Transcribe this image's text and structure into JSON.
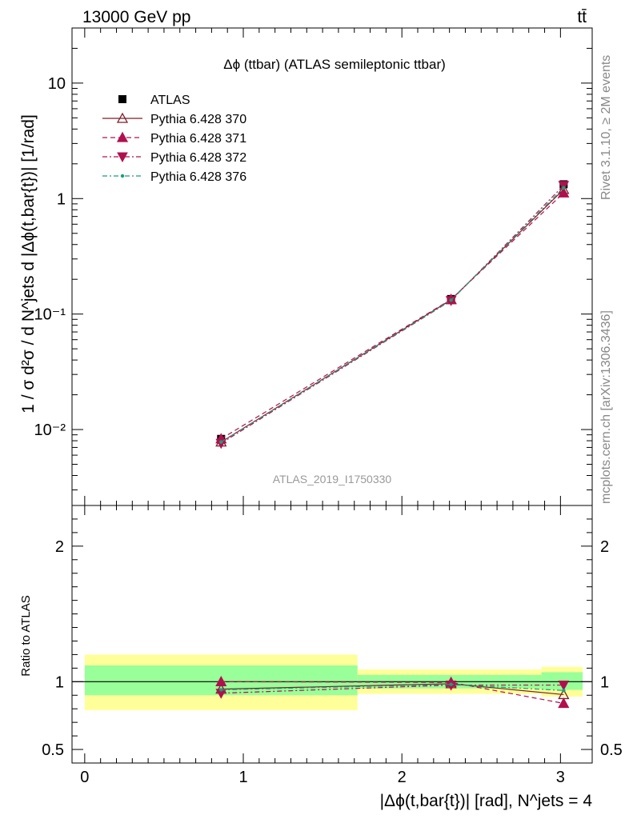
{
  "header": {
    "energy_label": "13000 GeV pp",
    "process_label": "tt̄"
  },
  "side_labels": {
    "rivet": "Rivet 3.1.10, ≥ 2M events",
    "source": "mcplots.cern.ch [arXiv:1306.3436]"
  },
  "watermark": "ATLAS_2019_I1750330",
  "chart_data": [
    {
      "type": "scatter",
      "title": "Δϕ (ttbar) (ATLAS semileptonic ttbar)",
      "ylabel": "1 / σ d²σ / d N^jets d |Δϕ(t,bar{t})| [1/rad]",
      "yscale": "log",
      "ylim": [
        0.0022,
        30
      ],
      "xlim": [
        -0.08,
        3.2
      ],
      "y_ticks": [
        {
          "value": 0.01,
          "label": "10⁻²"
        },
        {
          "value": 0.1,
          "label": "10⁻¹"
        },
        {
          "value": 1,
          "label": "1"
        },
        {
          "value": 10,
          "label": "10"
        }
      ],
      "x": [
        0.86,
        2.31,
        3.02
      ],
      "legend_position": "top-left",
      "series": [
        {
          "name": "ATLAS",
          "color": "#000000",
          "marker": "square",
          "line": "none",
          "values": [
            0.0083,
            0.135,
            1.33
          ]
        },
        {
          "name": "Pythia 6.428 370",
          "color": "#7a1f2a",
          "marker": "triangle-up-open",
          "line": "solid",
          "values": [
            0.0078,
            0.133,
            1.2
          ]
        },
        {
          "name": "Pythia 6.428 371",
          "color": "#b0104e",
          "marker": "triangle-up",
          "line": "dashed",
          "values": [
            0.0083,
            0.134,
            1.12
          ]
        },
        {
          "name": "Pythia 6.428 372",
          "color": "#b0104e",
          "marker": "triangle-down",
          "line": "dashdot",
          "values": [
            0.0076,
            0.131,
            1.3
          ]
        },
        {
          "name": "Pythia 6.428 376",
          "color": "#1a9e77",
          "marker": "circle-small",
          "line": "dashdot",
          "values": [
            0.0078,
            0.132,
            1.24
          ]
        }
      ]
    },
    {
      "type": "scatter",
      "ylabel": "Ratio to ATLAS",
      "xlabel": "|Δϕ(t,bar{t})| [rad], N^jets = 4",
      "ylim": [
        0.4,
        2.3
      ],
      "xlim": [
        -0.08,
        3.2
      ],
      "x_ticks": [
        0,
        1,
        2,
        3
      ],
      "y_ticks": [
        {
          "value": 0.5,
          "label": "0.5"
        },
        {
          "value": 1,
          "label": "1"
        },
        {
          "value": 2,
          "label": "2"
        }
      ],
      "bands": [
        {
          "x0": 0.0,
          "x1": 1.72,
          "inner": [
            0.9,
            1.12
          ],
          "outer": [
            0.79,
            1.2
          ]
        },
        {
          "x0": 1.72,
          "x1": 2.88,
          "inner": [
            0.95,
            1.05
          ],
          "outer": [
            0.91,
            1.09
          ]
        },
        {
          "x0": 2.88,
          "x1": 3.14,
          "inner": [
            0.94,
            1.07
          ],
          "outer": [
            0.89,
            1.11
          ]
        }
      ],
      "x": [
        0.86,
        2.31,
        3.02
      ],
      "series": [
        {
          "name": "Pythia 6.428 370",
          "color": "#7a1f2a",
          "marker": "triangle-up-open",
          "line": "solid",
          "values": [
            0.945,
            0.985,
            0.905
          ]
        },
        {
          "name": "Pythia 6.428 371",
          "color": "#b0104e",
          "marker": "triangle-up",
          "line": "dashed",
          "values": [
            1.0,
            0.995,
            0.84
          ]
        },
        {
          "name": "Pythia 6.428 372",
          "color": "#b0104e",
          "marker": "triangle-down",
          "line": "dashdot",
          "values": [
            0.915,
            0.975,
            0.975
          ]
        },
        {
          "name": "Pythia 6.428 376",
          "color": "#1a9e77",
          "marker": "circle-small",
          "line": "dashdot",
          "values": [
            0.94,
            0.98,
            0.935
          ]
        }
      ]
    }
  ],
  "colors": {
    "band_inner": "#99ff99",
    "band_outer": "#ffff99",
    "frame": "#000000"
  }
}
